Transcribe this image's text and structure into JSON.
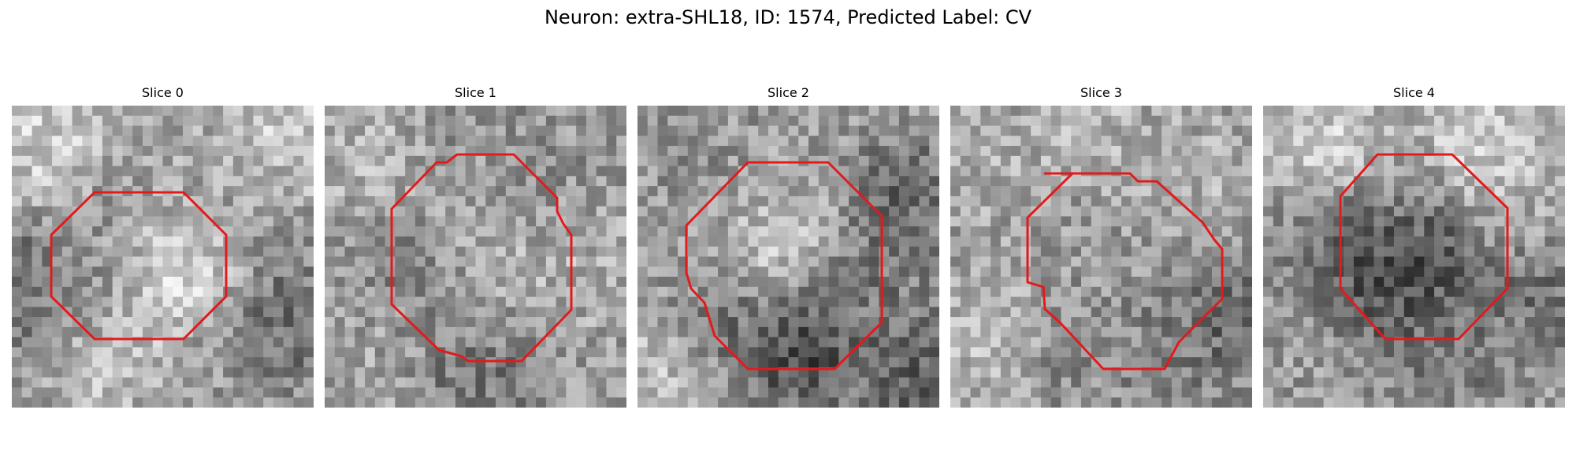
{
  "figure": {
    "title": "Neuron: extra-SHL18, ID: 1574, Predicted Label: CV"
  },
  "panels": [
    {
      "title": "Slice 0",
      "image": "grayscale microscopy patch",
      "contour_color": "#e31a1c",
      "seed": 11,
      "base": [
        [
          0.12,
          0.12,
          0.85
        ],
        [
          0.55,
          0.3,
          0.7
        ],
        [
          0.75,
          0.28,
          0.6
        ],
        [
          0.08,
          0.6,
          0.4
        ],
        [
          0.5,
          0.52,
          0.95
        ],
        [
          0.38,
          0.82,
          0.85
        ],
        [
          0.55,
          0.9,
          0.6
        ],
        [
          0.88,
          0.1,
          0.85
        ],
        [
          0.95,
          0.72,
          0.4
        ],
        [
          0.4,
          0.35,
          0.55
        ],
        [
          0.3,
          0.62,
          0.55
        ]
      ]
    },
    {
      "title": "Slice 1",
      "image": "grayscale microscopy patch",
      "contour_color": "#e31a1c",
      "seed": 23,
      "base": [
        [
          0.15,
          0.15,
          0.72
        ],
        [
          0.5,
          0.35,
          0.68
        ],
        [
          0.55,
          0.55,
          0.72
        ],
        [
          0.45,
          0.7,
          0.55
        ],
        [
          0.5,
          0.88,
          0.42
        ],
        [
          0.7,
          0.25,
          0.55
        ],
        [
          0.3,
          0.55,
          0.5
        ],
        [
          0.85,
          0.5,
          0.7
        ],
        [
          0.5,
          0.1,
          0.55
        ],
        [
          0.15,
          0.85,
          0.65
        ]
      ]
    },
    {
      "title": "Slice 2",
      "image": "grayscale microscopy patch",
      "contour_color": "#e31a1c",
      "seed": 37,
      "base": [
        [
          0.25,
          0.25,
          0.55
        ],
        [
          0.42,
          0.48,
          0.82
        ],
        [
          0.55,
          0.3,
          0.7
        ],
        [
          0.3,
          0.72,
          0.4
        ],
        [
          0.55,
          0.8,
          0.2
        ],
        [
          0.75,
          0.62,
          0.45
        ],
        [
          0.85,
          0.3,
          0.35
        ],
        [
          0.1,
          0.9,
          0.8
        ],
        [
          0.95,
          0.9,
          0.3
        ],
        [
          0.12,
          0.5,
          0.6
        ],
        [
          0.6,
          0.1,
          0.6
        ]
      ]
    },
    {
      "title": "Slice 3",
      "image": "grayscale microscopy patch",
      "contour_color": "#e31a1c",
      "seed": 41,
      "base": [
        [
          0.2,
          0.2,
          0.7
        ],
        [
          0.5,
          0.4,
          0.6
        ],
        [
          0.55,
          0.6,
          0.58
        ],
        [
          0.7,
          0.8,
          0.5
        ],
        [
          0.9,
          0.7,
          0.35
        ],
        [
          0.4,
          0.8,
          0.52
        ],
        [
          0.8,
          0.25,
          0.7
        ],
        [
          0.15,
          0.75,
          0.75
        ],
        [
          0.5,
          0.12,
          0.72
        ],
        [
          0.3,
          0.4,
          0.62
        ]
      ]
    },
    {
      "title": "Slice 4",
      "image": "grayscale microscopy patch",
      "contour_color": "#e31a1c",
      "seed": 53,
      "base": [
        [
          0.2,
          0.12,
          0.85
        ],
        [
          0.7,
          0.15,
          0.88
        ],
        [
          0.3,
          0.5,
          0.25
        ],
        [
          0.55,
          0.48,
          0.2
        ],
        [
          0.4,
          0.65,
          0.3
        ],
        [
          0.12,
          0.5,
          0.55
        ],
        [
          0.9,
          0.6,
          0.4
        ],
        [
          0.6,
          0.85,
          0.45
        ],
        [
          0.2,
          0.88,
          0.6
        ],
        [
          0.85,
          0.35,
          0.7
        ],
        [
          0.5,
          0.3,
          0.55
        ]
      ]
    }
  ]
}
